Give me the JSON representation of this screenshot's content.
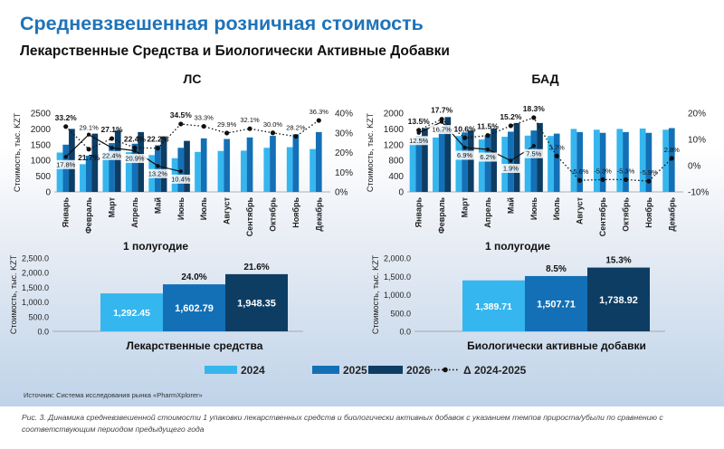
{
  "title": "Средневзвешенная розничная стоимость",
  "subtitle": "Лекарственные Средства и Биологически Активные Добавки",
  "source": "Источник: Система исследования рынка «PharmXplorer»",
  "caption": "Рис. 3. Динамика средневзвешенной стоимости 1 упаковки лекарственных средств и биологически активных добавок с указанием темпов прироста/убыли по сравнению с соответствующим периодом предыдущего года",
  "colors": {
    "y2024": "#35b6ee",
    "y2025": "#1370b6",
    "y2026": "#0d3d63",
    "line": "#111111",
    "title": "#1e73b9"
  },
  "legend": [
    {
      "label": "2024",
      "key": "y2024"
    },
    {
      "label": "2025",
      "key": "y2025"
    },
    {
      "label": "2026",
      "key": "y2026"
    },
    {
      "label": "Δ 2024-2025",
      "key": "line"
    }
  ],
  "chart_data": [
    {
      "id": "ls-monthly",
      "type": "bar",
      "title": "ЛС",
      "ylabel": "Стоимость, тыс. KZT",
      "ylim": [
        0,
        2500
      ],
      "yticks": [
        0,
        500,
        1000,
        1500,
        2000,
        2500
      ],
      "y2lim": [
        0,
        40
      ],
      "y2ticks": [
        "0%",
        "10%",
        "20%",
        "30%",
        "40%"
      ],
      "y2values": [
        0,
        10,
        20,
        30,
        40
      ],
      "categories": [
        "Январь",
        "Февраль",
        "Март",
        "Апрель",
        "Май",
        "Июнь",
        "Июль",
        "Август",
        "Сентябрь",
        "Октябрь",
        "Ноябрь",
        "Декабрь"
      ],
      "series": [
        {
          "name": "2024",
          "values": [
            1250,
            880,
            1250,
            1260,
            1170,
            1070,
            1270,
            1300,
            1310,
            1400,
            1420,
            1360
          ]
        },
        {
          "name": "2025",
          "values": [
            1500,
            1150,
            1550,
            1530,
            1480,
            1400,
            1700,
            1680,
            1730,
            1780,
            1830,
            1900
          ]
        },
        {
          "name": "2026",
          "values": [
            2000,
            1850,
            1950,
            1900,
            1760,
            1620,
            null,
            null,
            null,
            null,
            null,
            null
          ]
        }
      ],
      "line": {
        "name": "Δ 2024-2025",
        "solid": [
          17.8,
          29.1,
          22.4,
          20.9,
          13.2,
          10.4
        ],
        "dotted": [
          33.2,
          21.7,
          27.1,
          22.4,
          22.2,
          34.5,
          33.3,
          29.9,
          32.1,
          30.0,
          28.2,
          36.3
        ],
        "solid_labels": [
          "17.8%",
          "29.1%",
          "22.4%",
          "20.9%",
          "13.2%",
          "10.4%"
        ],
        "dotted_labels": [
          "33.2%",
          "21.7%",
          "27.1%",
          "22.4%",
          "22.2%",
          "34.5%",
          "33.3%",
          "29.9%",
          "32.1%",
          "30.0%",
          "28.2%",
          "36.3%"
        ]
      }
    },
    {
      "id": "bad-monthly",
      "type": "bar",
      "title": "БАД",
      "ylabel": "Стоимость, тыс. KZT",
      "ylim": [
        0,
        2000
      ],
      "yticks": [
        0,
        400,
        800,
        1200,
        1600,
        2000
      ],
      "y2lim": [
        -10,
        20
      ],
      "y2ticks": [
        "-10%",
        "0%",
        "10%",
        "20%"
      ],
      "y2values": [
        -10,
        0,
        10,
        20
      ],
      "categories": [
        "Январь",
        "Февраль",
        "Март",
        "Апрель",
        "Май",
        "Июнь",
        "Июль",
        "Август",
        "Сентябрь",
        "Октябрь",
        "Ноябрь",
        "Декабрь"
      ],
      "series": [
        {
          "name": "2024",
          "values": [
            1260,
            1380,
            1420,
            1330,
            1400,
            1430,
            1420,
            1600,
            1580,
            1600,
            1610,
            1580
          ]
        },
        {
          "name": "2025",
          "values": [
            1420,
            1620,
            1510,
            1440,
            1530,
            1560,
            1480,
            1520,
            1500,
            1520,
            1500,
            1620
          ]
        },
        {
          "name": "2026",
          "values": [
            1620,
            1900,
            1560,
            1610,
            1750,
            1750,
            null,
            null,
            null,
            null,
            null,
            null
          ]
        }
      ],
      "line": {
        "name": "Δ 2024-2025",
        "solid": [
          12.5,
          16.7,
          6.9,
          6.2,
          1.9,
          7.5
        ],
        "dotted": [
          13.5,
          17.7,
          10.6,
          11.5,
          15.2,
          18.3,
          3.7,
          -5.6,
          -5.3,
          -5.3,
          -5.9,
          2.8
        ],
        "solid_labels": [
          "12.5%",
          "16.7%",
          "6.9%",
          "6.2%",
          "1.9%",
          "7.5%"
        ],
        "dotted_labels": [
          "13.5%",
          "17.7%",
          "10.6%",
          "11.5%",
          "15.2%",
          "18.3%",
          "3.7%",
          "-5.6%",
          "-5.3%",
          "-5.3%",
          "-5.9%",
          "2.8%"
        ]
      }
    },
    {
      "id": "ls-half",
      "type": "bar",
      "title": "1 полугодие",
      "xlabel": "Лекарственные средства",
      "ylabel": "Стоимость, тыс. KZT",
      "ylim": [
        0,
        2500
      ],
      "yticks": [
        "0.0",
        "500.0",
        "1,000.0",
        "1,500.0",
        "2,000.0",
        "2,500.0"
      ],
      "categories": [
        "2024",
        "2025",
        "2026"
      ],
      "values": [
        1292.45,
        1602.79,
        1948.35
      ],
      "value_labels": [
        "1,292.45",
        "1,602.79",
        "1,948.35"
      ],
      "growth_labels": [
        "24.0%",
        "21.6%"
      ]
    },
    {
      "id": "bad-half",
      "type": "bar",
      "title": "1 полугодие",
      "xlabel": "Биологически активные добавки",
      "ylabel": "Стоимость, тыс. KZT",
      "ylim": [
        0,
        2000
      ],
      "yticks": [
        "0.0",
        "500.0",
        "1,000.0",
        "1,500.0",
        "2,000.0"
      ],
      "categories": [
        "2024",
        "2025",
        "2026"
      ],
      "values": [
        1389.71,
        1507.71,
        1738.92
      ],
      "value_labels": [
        "1,389.71",
        "1,507.71",
        "1,738.92"
      ],
      "growth_labels": [
        "8.5%",
        "15.3%"
      ]
    }
  ]
}
